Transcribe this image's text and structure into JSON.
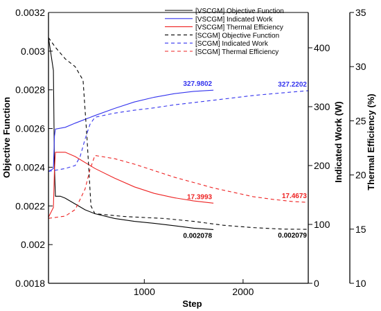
{
  "chart_data": {
    "type": "line",
    "xlabel": "Step",
    "y_left_label": "Objective Function",
    "y_right1_label": "Indicated Work (W)",
    "y_right2_label": "Thermal Efficiency (%)",
    "x_range": [
      30,
      2660
    ],
    "x_ticks": [
      1000,
      2000
    ],
    "y_left_range": [
      0.0018,
      0.0032
    ],
    "y_left_ticks": [
      "0.0018",
      "0.002",
      "0.0022",
      "0.0024",
      "0.0026",
      "0.0028",
      "0.003",
      "0.0032"
    ],
    "y_right1_range": [
      0,
      460
    ],
    "y_right1_ticks": [
      0,
      100,
      200,
      300,
      400
    ],
    "y_right2_range": [
      10,
      35
    ],
    "y_right2_ticks": [
      10,
      15,
      20,
      25,
      30,
      35
    ],
    "series": [
      {
        "name": "[VSCGM] Objective Function",
        "axis": "left",
        "color": "#000000",
        "dash": false,
        "x": [
          30,
          80,
          90,
          100,
          110,
          150,
          200,
          300,
          400,
          500,
          700,
          900,
          1100,
          1300,
          1500,
          1700
        ],
        "y": [
          0.00307,
          0.0029,
          0.0024,
          0.00225,
          0.00225,
          0.00225,
          0.00224,
          0.00221,
          0.00218,
          0.00216,
          0.002135,
          0.00212,
          0.00211,
          0.002098,
          0.002085,
          0.002078
        ]
      },
      {
        "name": "[VSCGM] Indicated Work",
        "axis": "right1",
        "color": "#3333ee",
        "dash": false,
        "x": [
          30,
          80,
          90,
          100,
          200,
          300,
          500,
          700,
          900,
          1100,
          1300,
          1500,
          1700
        ],
        "y": [
          190,
          195,
          250,
          262,
          265,
          272,
          285,
          297,
          308,
          316,
          322,
          326,
          327.9802
        ]
      },
      {
        "name": "[VSCGM] Thermal Efficiency",
        "axis": "right2",
        "color": "#ee2222",
        "dash": false,
        "x": [
          30,
          80,
          90,
          100,
          200,
          300,
          500,
          700,
          900,
          1100,
          1300,
          1500,
          1700
        ],
        "y": [
          16.1,
          17.0,
          20.5,
          22.1,
          22.1,
          21.7,
          20.6,
          19.7,
          18.9,
          18.3,
          17.9,
          17.6,
          17.3993
        ]
      },
      {
        "name": "[SCGM] Objective Function",
        "axis": "left",
        "color": "#000000",
        "dash": true,
        "x": [
          30,
          100,
          200,
          300,
          380,
          420,
          460,
          500,
          600,
          800,
          1000,
          1200,
          1500,
          1800,
          2100,
          2400,
          2660
        ],
        "y": [
          0.00307,
          0.00302,
          0.00296,
          0.00292,
          0.00285,
          0.00255,
          0.0022,
          0.00216,
          0.002155,
          0.002145,
          0.00214,
          0.002135,
          0.00212,
          0.0021,
          0.002088,
          0.00208,
          0.002079
        ]
      },
      {
        "name": "[SCGM] Indicated Work",
        "axis": "right1",
        "color": "#3333ee",
        "dash": true,
        "x": [
          30,
          200,
          300,
          350,
          400,
          450,
          500,
          700,
          900,
          1100,
          1300,
          1500,
          1700,
          1900,
          2100,
          2300,
          2500,
          2660
        ],
        "y": [
          190,
          195,
          200,
          215,
          245,
          270,
          282,
          289,
          294,
          298,
          303,
          307,
          311,
          315,
          319,
          322,
          325,
          327.2202
        ]
      },
      {
        "name": "[SCGM] Thermal Efficiency",
        "axis": "right2",
        "color": "#ee2222",
        "dash": true,
        "x": [
          30,
          200,
          300,
          400,
          450,
          500,
          700,
          900,
          1100,
          1300,
          1500,
          1700,
          1900,
          2100,
          2300,
          2500,
          2660
        ],
        "y": [
          16.0,
          16.2,
          16.8,
          18.7,
          20.5,
          21.8,
          21.5,
          21.0,
          20.4,
          19.8,
          19.3,
          18.8,
          18.4,
          18.0,
          17.75,
          17.55,
          17.4673
        ]
      }
    ],
    "legend_position": "top-right",
    "annotations": [
      {
        "text": "327.9802",
        "x": 1700,
        "axis": "right1",
        "y": 327.9802,
        "color": "#3333ee",
        "anchor": "end"
      },
      {
        "text": "327.2202",
        "x": 2660,
        "axis": "right1",
        "y": 327.2202,
        "color": "#3333ee",
        "anchor": "end"
      },
      {
        "text": "17.3993",
        "x": 1700,
        "axis": "right2",
        "y": 17.3993,
        "color": "#ee2222",
        "anchor": "end"
      },
      {
        "text": "17.4673",
        "x": 2660,
        "axis": "right2",
        "y": 17.4673,
        "color": "#ee2222",
        "anchor": "end"
      },
      {
        "text": "0.002078",
        "x": 1700,
        "axis": "left",
        "y": 0.002078,
        "color": "#000000",
        "anchor": "end"
      },
      {
        "text": "0.002079",
        "x": 2660,
        "axis": "left",
        "y": 0.002079,
        "color": "#000000",
        "anchor": "end"
      }
    ]
  }
}
